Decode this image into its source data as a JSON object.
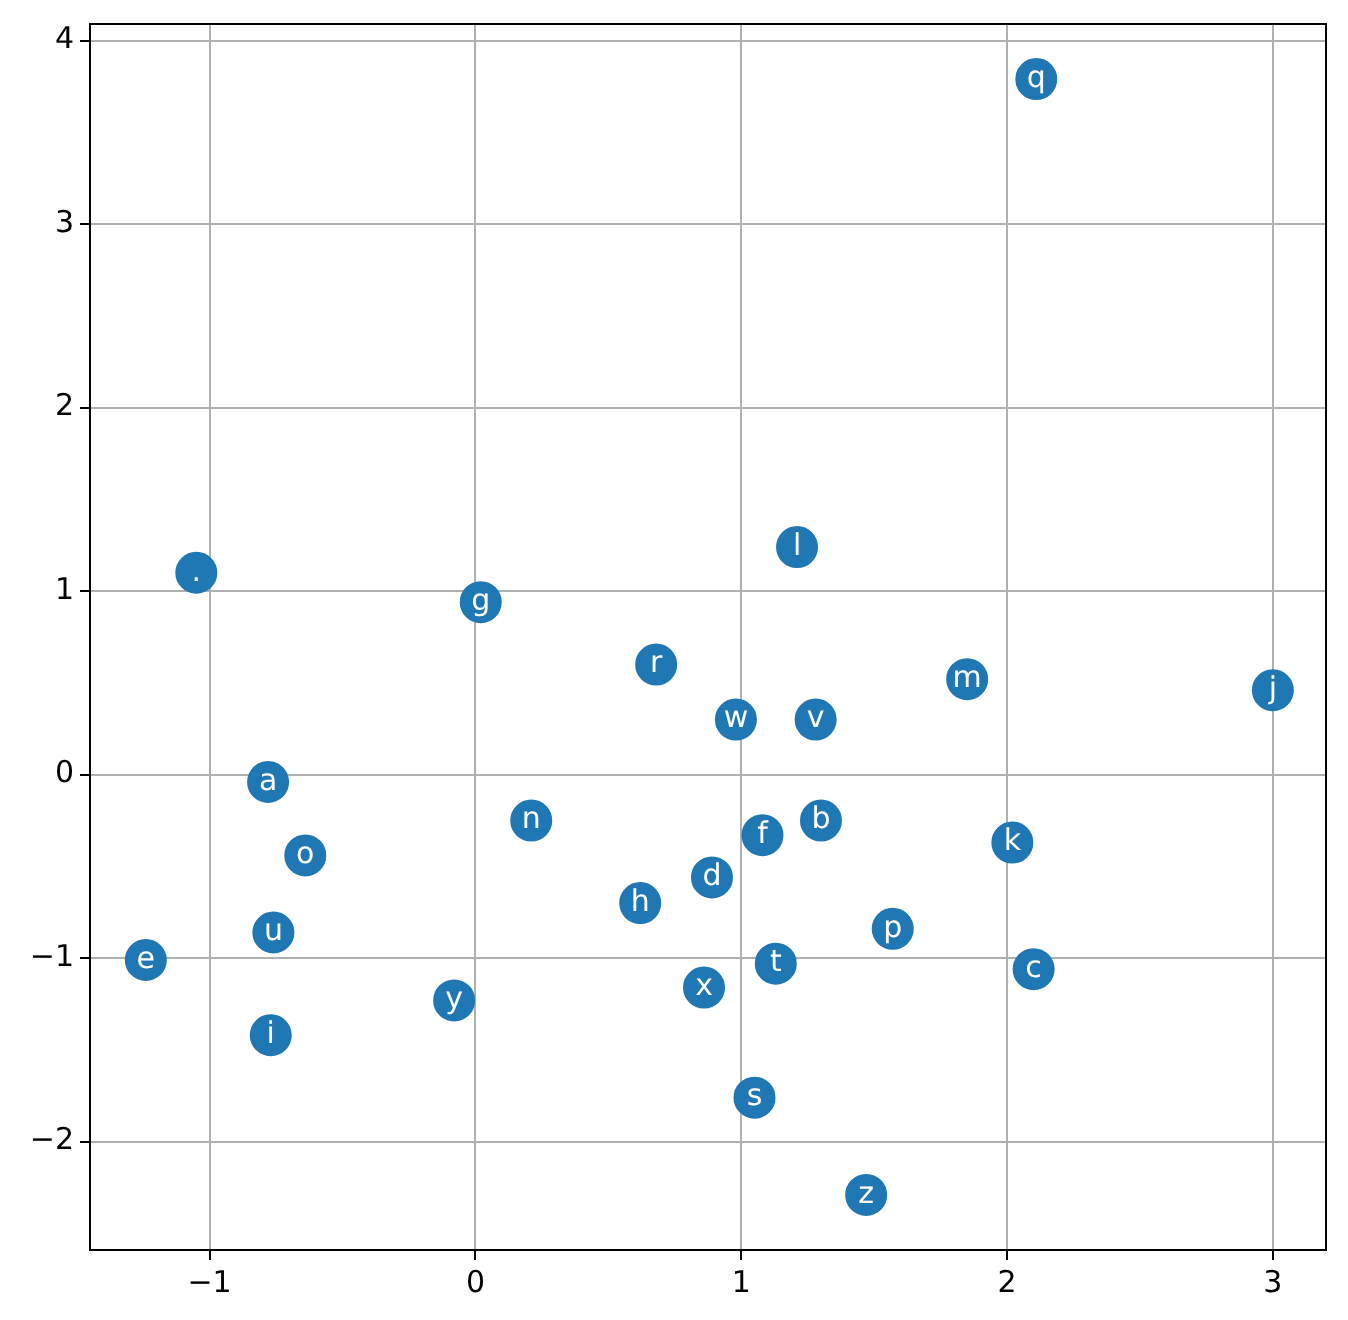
{
  "chart_data": {
    "type": "scatter",
    "marker": "circle",
    "grid": true,
    "x": [
      2.11,
      -1.05,
      0.02,
      1.21,
      0.68,
      1.85,
      3.0,
      0.98,
      1.28,
      -0.78,
      0.21,
      1.3,
      1.08,
      2.02,
      -0.64,
      0.89,
      0.62,
      -0.76,
      1.57,
      -1.24,
      1.13,
      2.1,
      0.86,
      -0.08,
      -0.77,
      1.05,
      1.47
    ],
    "series": [
      {
        "color": "#1f77b4",
        "values": [
          3.79,
          1.1,
          0.94,
          1.24,
          0.6,
          0.52,
          0.46,
          0.3,
          0.3,
          -0.04,
          -0.25,
          -0.25,
          -0.33,
          -0.37,
          -0.44,
          -0.56,
          -0.7,
          -0.86,
          -0.84,
          -1.01,
          -1.03,
          -1.06,
          -1.16,
          -1.23,
          -1.42,
          -1.76,
          -2.29
        ],
        "value_labels": [
          "q",
          ".",
          "g",
          "l",
          "r",
          "m",
          "j",
          "w",
          "v",
          "a",
          "n",
          "b",
          "f",
          "k",
          "o",
          "d",
          "h",
          "u",
          "p",
          "e",
          "t",
          "c",
          "x",
          "y",
          "i",
          "s",
          "z"
        ]
      }
    ],
    "xlim": [
      -1.45,
      3.2
    ],
    "ylim": [
      -2.59,
      4.09
    ],
    "xticks": [
      {
        "value": -1,
        "label": "−1"
      },
      0,
      1,
      2,
      3
    ],
    "yticks": [
      {
        "value": -2,
        "label": "−2"
      },
      {
        "value": -1,
        "label": "−1"
      },
      0,
      1,
      2,
      3,
      4
    ]
  }
}
